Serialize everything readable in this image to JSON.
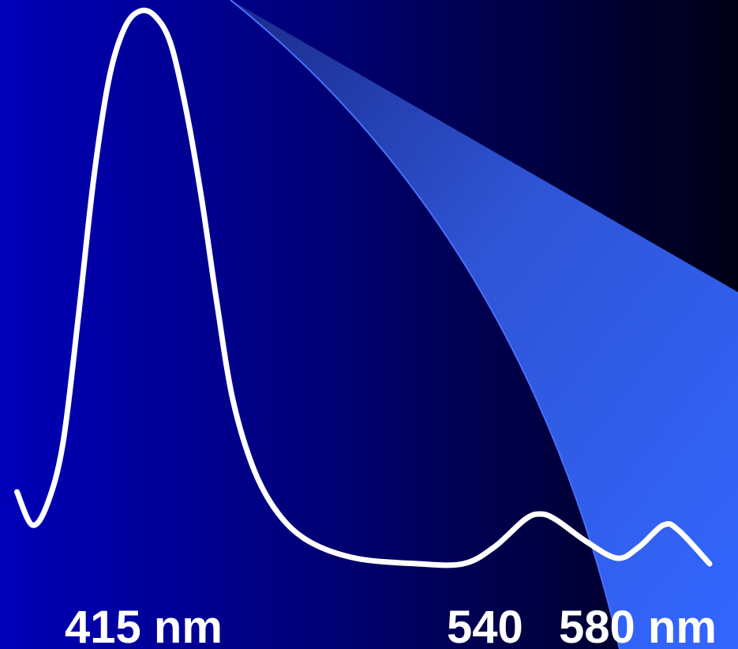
{
  "chart_data": {
    "type": "line",
    "title": "",
    "xlabel": "",
    "ylabel": "",
    "grid": false,
    "legend": "none",
    "tick_labels": [
      "415 nm",
      "540",
      "580 nm"
    ],
    "series": [
      {
        "color": "#ffffff",
        "points": [
          {
            "x": 370,
            "y": 0.13
          },
          {
            "x": 375,
            "y": 0.07
          },
          {
            "x": 380,
            "y": 0.11
          },
          {
            "x": 385,
            "y": 0.22
          },
          {
            "x": 390,
            "y": 0.45
          },
          {
            "x": 395,
            "y": 0.7
          },
          {
            "x": 400,
            "y": 0.88
          },
          {
            "x": 405,
            "y": 0.97
          },
          {
            "x": 410,
            "y": 1.0
          },
          {
            "x": 415,
            "y": 0.99
          },
          {
            "x": 420,
            "y": 0.94
          },
          {
            "x": 425,
            "y": 0.82
          },
          {
            "x": 430,
            "y": 0.66
          },
          {
            "x": 435,
            "y": 0.47
          },
          {
            "x": 440,
            "y": 0.3
          },
          {
            "x": 447,
            "y": 0.17
          },
          {
            "x": 455,
            "y": 0.09
          },
          {
            "x": 465,
            "y": 0.04
          },
          {
            "x": 480,
            "y": 0.01
          },
          {
            "x": 500,
            "y": 0.0
          },
          {
            "x": 515,
            "y": 0.0
          },
          {
            "x": 525,
            "y": 0.03
          },
          {
            "x": 535,
            "y": 0.08
          },
          {
            "x": 540,
            "y": 0.09
          },
          {
            "x": 545,
            "y": 0.08
          },
          {
            "x": 555,
            "y": 0.04
          },
          {
            "x": 565,
            "y": 0.01
          },
          {
            "x": 572,
            "y": 0.03
          },
          {
            "x": 580,
            "y": 0.07
          },
          {
            "x": 585,
            "y": 0.06
          },
          {
            "x": 595,
            "y": 0.0
          }
        ]
      }
    ],
    "background_colors": {
      "left": "#0000b8",
      "right": "#000015",
      "wedge_light": "#3366ff",
      "wedge_dark": "#1a2a8a"
    }
  }
}
